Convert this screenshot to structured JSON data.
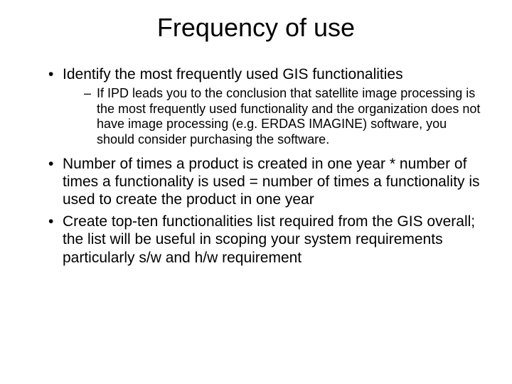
{
  "title": "Frequency of use",
  "bullets": {
    "b1": "Identify the most frequently used GIS functionalities",
    "b1_sub1": "If IPD leads you to the conclusion that satellite image processing is the most frequently used functionality and the organization does not have image processing (e.g. ERDAS IMAGINE) software, you should consider purchasing the software.",
    "b2": "Number of times a product is created in one year * number of times a functionality is used = number of times a functionality is used to create the product in one year",
    "b3": "Create top-ten functionalities list required from the GIS overall; the list will be useful in scoping your system requirements particularly s/w and h/w requirement"
  },
  "style": {
    "background_color": "#ffffff",
    "text_color": "#000000",
    "title_fontsize": 36,
    "body_fontsize": 21,
    "sub_fontsize": 18,
    "font_family": "Arial"
  }
}
